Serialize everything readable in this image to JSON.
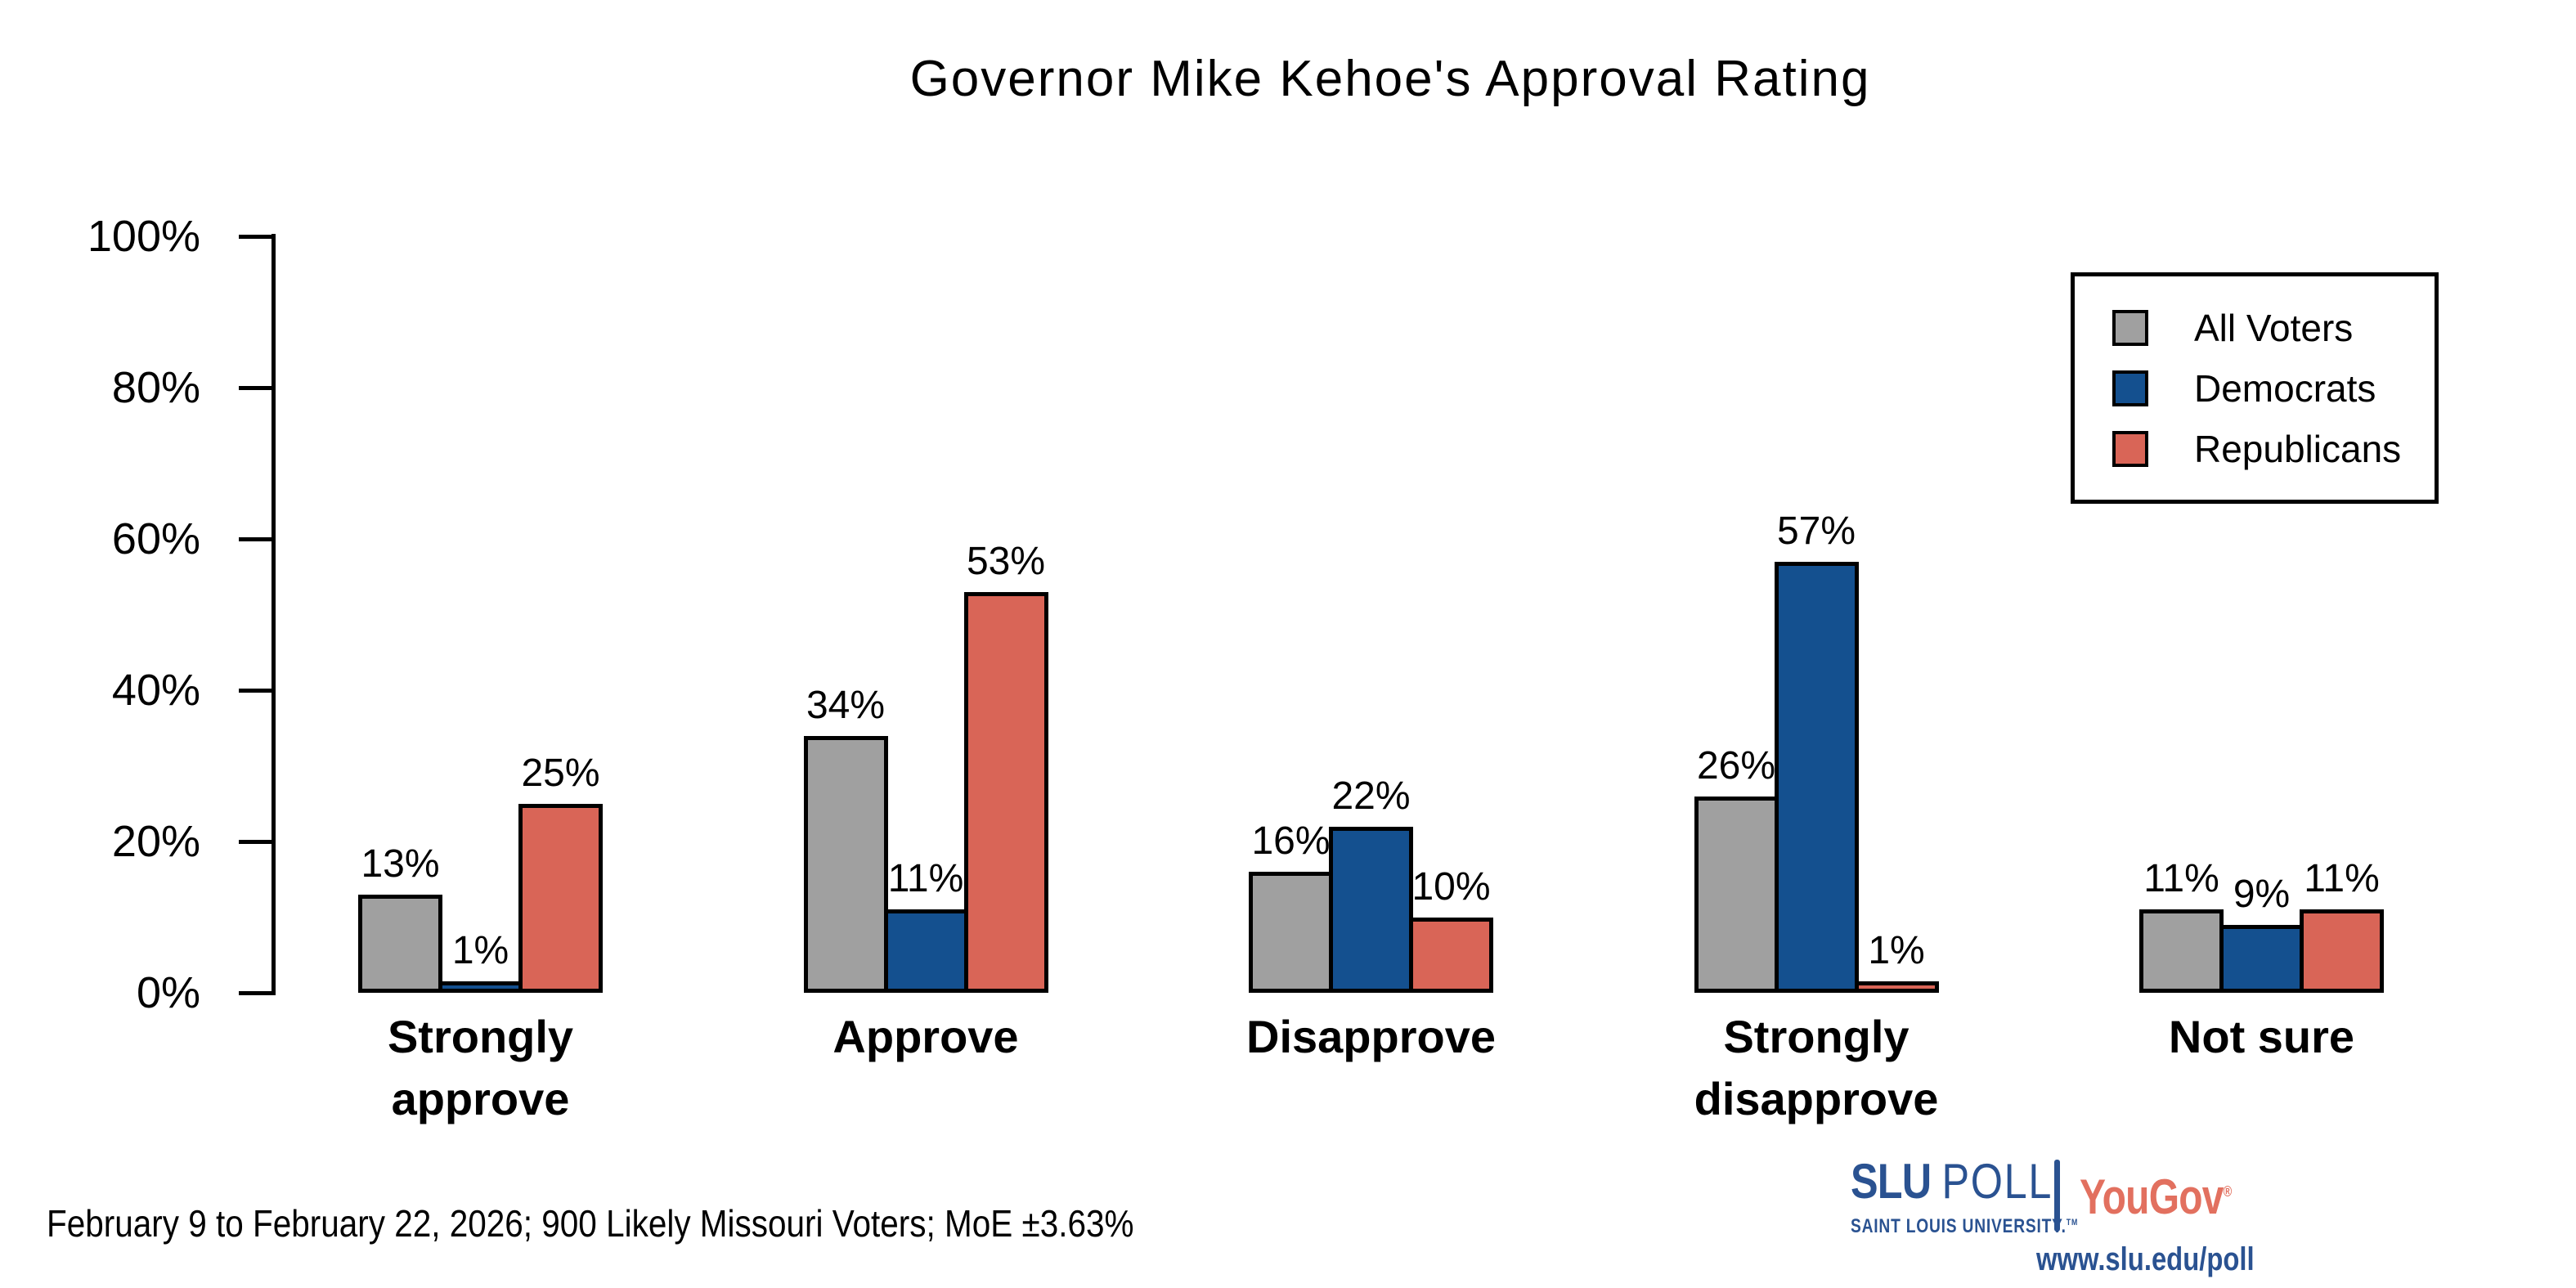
{
  "footnote": "February 9 to February 22, 2026; 900 Likely Missouri Voters; MoE ±3.63%",
  "branding": {
    "slu": "SLU",
    "poll": "POLL",
    "subtitle": "SAINT LOUIS UNIVERSITY.",
    "tm": "TM",
    "yougov": "YouGov",
    "registered": "®",
    "url": "www.slu.edu/poll"
  },
  "chart_data": {
    "type": "bar",
    "title": "Governor Mike Kehoe's Approval Rating",
    "categories": [
      "Strongly\napprove",
      "Approve",
      "Disapprove",
      "Strongly\ndisapprove",
      "Not sure"
    ],
    "series": [
      {
        "name": "All Voters",
        "color": "#a0a0a0",
        "values": [
          13,
          34,
          16,
          26,
          11
        ]
      },
      {
        "name": "Democrats",
        "color": "#14508f",
        "values": [
          1,
          11,
          22,
          57,
          9
        ]
      },
      {
        "name": "Republicans",
        "color": "#d96557",
        "values": [
          25,
          53,
          10,
          1,
          11
        ]
      }
    ],
    "value_suffix": "%",
    "y_ticks": [
      "0%",
      "20%",
      "40%",
      "60%",
      "80%",
      "100%"
    ],
    "y_tick_values": [
      0,
      20,
      40,
      60,
      80,
      100
    ],
    "ylim": [
      0,
      100
    ],
    "grid": false,
    "legend_position": "top-right",
    "bar_outline_color": "#000000"
  }
}
